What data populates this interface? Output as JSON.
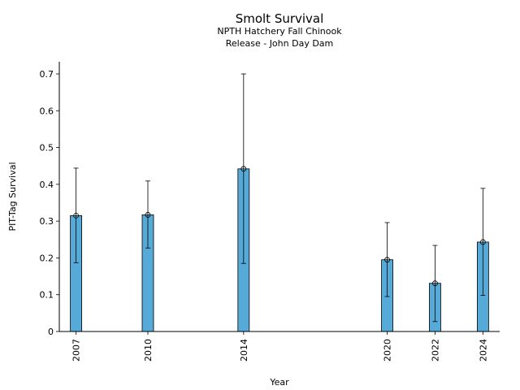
{
  "chart_data": {
    "type": "bar",
    "title": "Smolt Survival",
    "subtitle_lines": [
      "NPTH Hatchery Fall Chinook",
      "Release - John Day Dam"
    ],
    "xlabel": "Year",
    "ylabel": "PIT-Tag Survival",
    "x": [
      2007,
      2010,
      2014,
      2020,
      2022,
      2024
    ],
    "categories": [
      "2007",
      "2010",
      "2014",
      "2020",
      "2022",
      "2024"
    ],
    "values": [
      0.315,
      0.317,
      0.442,
      0.195,
      0.131,
      0.243
    ],
    "error_low": [
      0.187,
      0.227,
      0.185,
      0.095,
      0.027,
      0.098
    ],
    "error_high": [
      0.444,
      0.409,
      0.7,
      0.296,
      0.234,
      0.389
    ],
    "ylim": [
      0,
      0.7
    ],
    "yticks": [
      0,
      0.1,
      0.2,
      0.3,
      0.4,
      0.5,
      0.6,
      0.7
    ],
    "xlim": [
      2006.3,
      2024.7
    ],
    "grid": false,
    "bar_color": "#56aad8",
    "edge_color": "#000000"
  }
}
